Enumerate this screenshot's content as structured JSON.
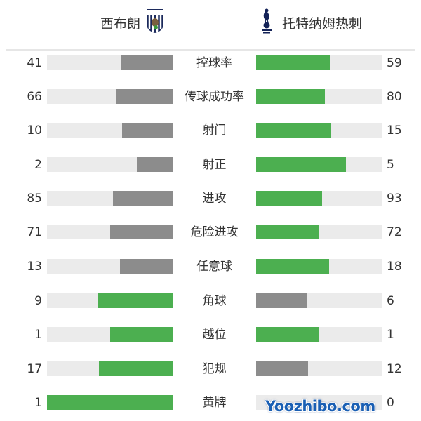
{
  "header": {
    "home_team": "西布朗",
    "away_team": "托特纳姆热刺",
    "home_logo_text": "ALBION",
    "away_logo": "cockerel-on-ball"
  },
  "colors": {
    "leader": "#4caf50",
    "trailer": "#8c8c8c",
    "track": "#ebebeb"
  },
  "stats": [
    {
      "label": "控球率",
      "home": 41,
      "away": 59
    },
    {
      "label": "传球成功率",
      "home": 66,
      "away": 80
    },
    {
      "label": "射门",
      "home": 10,
      "away": 15
    },
    {
      "label": "射正",
      "home": 2,
      "away": 5
    },
    {
      "label": "进攻",
      "home": 85,
      "away": 93
    },
    {
      "label": "危险进攻",
      "home": 71,
      "away": 72
    },
    {
      "label": "任意球",
      "home": 13,
      "away": 18
    },
    {
      "label": "角球",
      "home": 9,
      "away": 6
    },
    {
      "label": "越位",
      "home": 1,
      "away": 1
    },
    {
      "label": "犯规",
      "home": 17,
      "away": 12
    },
    {
      "label": "黄牌",
      "home": 1,
      "away": 0
    }
  ],
  "watermark": "Yoozhibo.com"
}
